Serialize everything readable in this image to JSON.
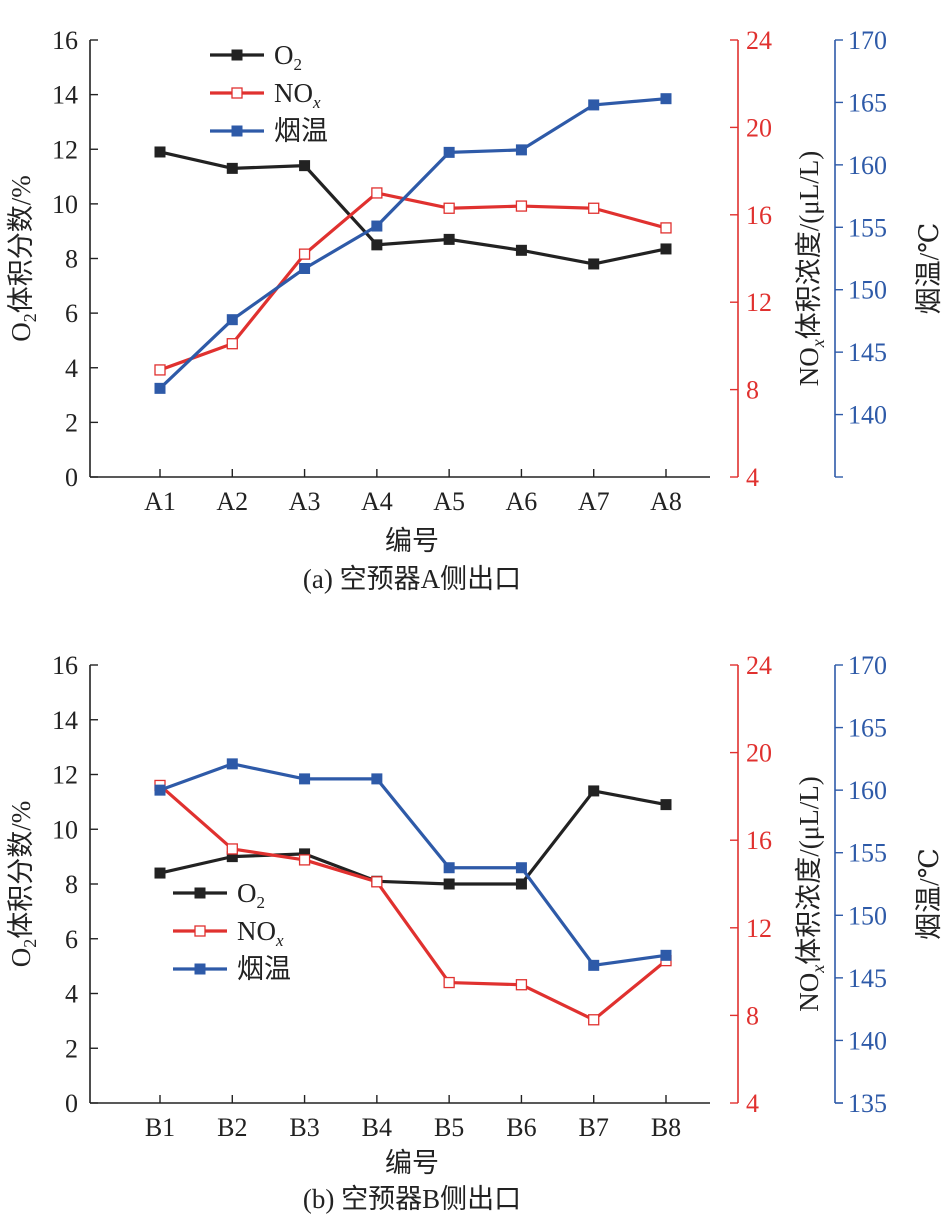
{
  "colors": {
    "o2": "#222222",
    "nox": "#e0312f",
    "temp": "#2e5aa8",
    "axis": "#222222"
  },
  "chart_data": [
    {
      "type": "line",
      "caption": "(a) 空预器A侧出口",
      "xlabel": "编号",
      "categories": [
        "A1",
        "A2",
        "A3",
        "A4",
        "A5",
        "A6",
        "A7",
        "A8"
      ],
      "axes": {
        "left": {
          "title_main": "体积分数/%",
          "title_sub": "2",
          "title_prefix": "O",
          "ylim": [
            0,
            16
          ],
          "ticks": [
            "0",
            "2",
            "4",
            "6",
            "8",
            "10",
            "12",
            "14",
            "16"
          ]
        },
        "right1": {
          "title_prefix": "NO",
          "title_sub": "x",
          "title_main": "体积浓度/(μL/L)",
          "ylim": [
            4,
            24
          ],
          "ticks": [
            "4",
            "8",
            "12",
            "16",
            "20",
            "24"
          ]
        },
        "right2": {
          "title": "烟温/℃",
          "ylim": [
            135,
            170
          ],
          "ticks": [
            "140",
            "145",
            "150",
            "155",
            "160",
            "165",
            "170"
          ]
        }
      },
      "legend": [
        {
          "prefix": "O",
          "sub": "2",
          "color_key": "o2",
          "marker": "filled"
        },
        {
          "prefix": "NO",
          "sub": "x",
          "color_key": "nox",
          "marker": "hollow"
        },
        {
          "prefix": "烟温",
          "sub": "",
          "color_key": "temp",
          "marker": "filled"
        }
      ],
      "series": [
        {
          "name": "O2",
          "axis": "left",
          "color_key": "o2",
          "marker": "filled",
          "values": [
            11.9,
            11.3,
            11.4,
            8.5,
            8.7,
            8.3,
            7.8,
            8.35
          ]
        },
        {
          "name": "NOx",
          "axis": "right1",
          "color_key": "nox",
          "marker": "hollow",
          "values": [
            8.9,
            10.1,
            14.2,
            17.0,
            16.3,
            16.4,
            16.3,
            15.4
          ]
        },
        {
          "name": "烟温",
          "axis": "right2",
          "color_key": "temp",
          "marker": "filled",
          "values": [
            142.1,
            147.6,
            151.7,
            155.1,
            161.0,
            161.2,
            164.8,
            165.3
          ]
        }
      ]
    },
    {
      "type": "line",
      "caption": "(b) 空预器B侧出口",
      "xlabel": "编号",
      "categories": [
        "B1",
        "B2",
        "B3",
        "B4",
        "B5",
        "B6",
        "B7",
        "B8"
      ],
      "axes": {
        "left": {
          "title_main": "体积分数/%",
          "title_sub": "2",
          "title_prefix": "O",
          "ylim": [
            0,
            16
          ],
          "ticks": [
            "0",
            "2",
            "4",
            "6",
            "8",
            "10",
            "12",
            "14",
            "16"
          ]
        },
        "right1": {
          "title_prefix": "NO",
          "title_sub": "x",
          "title_main": "体积浓度/(μL/L)",
          "ylim": [
            4,
            24
          ],
          "ticks": [
            "4",
            "8",
            "12",
            "16",
            "20",
            "24"
          ]
        },
        "right2": {
          "title": "烟温/℃",
          "ylim": [
            135,
            170
          ],
          "ticks": [
            "135",
            "140",
            "145",
            "150",
            "155",
            "160",
            "165",
            "170"
          ]
        }
      },
      "legend": [
        {
          "prefix": "O",
          "sub": "2",
          "color_key": "o2",
          "marker": "filled"
        },
        {
          "prefix": "NO",
          "sub": "x",
          "color_key": "nox",
          "marker": "hollow"
        },
        {
          "prefix": "烟温",
          "sub": "",
          "color_key": "temp",
          "marker": "filled"
        }
      ],
      "series": [
        {
          "name": "O2",
          "axis": "left",
          "color_key": "o2",
          "marker": "filled",
          "values": [
            8.4,
            9.0,
            9.1,
            8.1,
            8.0,
            8.0,
            11.4,
            10.9
          ]
        },
        {
          "name": "NOx",
          "axis": "right1",
          "color_key": "nox",
          "marker": "hollow",
          "values": [
            18.5,
            15.6,
            15.1,
            14.1,
            9.5,
            9.4,
            7.8,
            10.5
          ]
        },
        {
          "name": "烟温",
          "axis": "right2",
          "color_key": "temp",
          "marker": "filled",
          "values": [
            160.0,
            162.1,
            160.9,
            160.9,
            153.8,
            153.8,
            146.0,
            146.8
          ]
        }
      ]
    }
  ]
}
